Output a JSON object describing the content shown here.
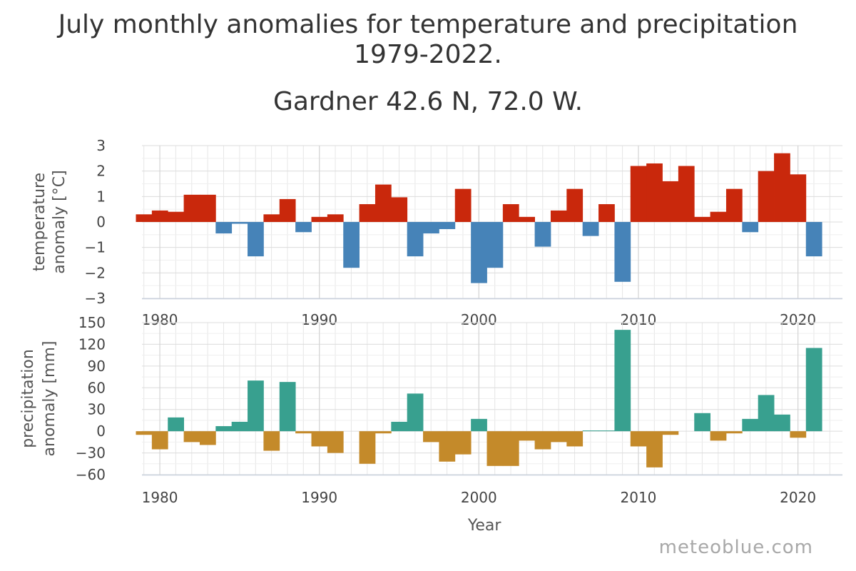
{
  "title_line1": "July monthly anomalies for temperature and precipitation",
  "title_line2": "1979-2022.",
  "subtitle": "Gardner 42.6 N, 72.0 W.",
  "watermark": "meteoblue.com",
  "colors": {
    "temp_positive": "#c9280c",
    "temp_negative": "#4683b8",
    "precip_positive": "#38a08f",
    "precip_negative": "#c48a2a",
    "grid": "#e6e6e6",
    "axis": "#c8d0dc"
  },
  "chart_data": [
    {
      "type": "bar",
      "name": "temperature",
      "ylabel": "temperature anomaly [°C]",
      "ylabel_lines": [
        "temperature",
        "anomaly [°C]"
      ],
      "ylim": [
        -3,
        3
      ],
      "yticks": [
        3,
        2,
        1,
        0,
        -1,
        -2,
        -3
      ],
      "xticks": [
        1980,
        1990,
        2000,
        2010,
        2020
      ],
      "grid": true,
      "x": [
        1979,
        1980,
        1981,
        1982,
        1983,
        1984,
        1985,
        1986,
        1987,
        1988,
        1989,
        1990,
        1991,
        1992,
        1993,
        1994,
        1995,
        1996,
        1997,
        1998,
        1999,
        2000,
        2001,
        2002,
        2003,
        2004,
        2005,
        2006,
        2007,
        2008,
        2009,
        2010,
        2011,
        2012,
        2013,
        2014,
        2015,
        2016,
        2017,
        2018,
        2019,
        2020,
        2021
      ],
      "values": [
        0.3,
        0.45,
        0.4,
        1.07,
        1.07,
        -0.45,
        -0.07,
        -1.35,
        0.3,
        0.9,
        -0.4,
        0.2,
        0.3,
        -1.8,
        0.7,
        1.47,
        0.97,
        -1.35,
        -0.45,
        -0.28,
        1.3,
        -2.4,
        -1.8,
        0.7,
        0.2,
        -0.97,
        0.45,
        1.3,
        -0.55,
        0.7,
        -2.35,
        2.2,
        2.3,
        1.6,
        2.2,
        0.2,
        0.4,
        1.3,
        -0.4,
        2.0,
        2.7,
        1.87,
        -1.35
      ]
    },
    {
      "type": "bar",
      "name": "precipitation",
      "ylabel": "precipitation anomaly [mm]",
      "ylabel_lines": [
        "precipitation",
        "anomaly [mm]"
      ],
      "xlabel": "Year",
      "ylim": [
        -60,
        150
      ],
      "yticks": [
        150,
        120,
        90,
        60,
        30,
        0,
        -30,
        -60
      ],
      "xticks": [
        1980,
        1990,
        2000,
        2010,
        2020
      ],
      "grid": true,
      "x": [
        1979,
        1980,
        1981,
        1982,
        1983,
        1984,
        1985,
        1986,
        1987,
        1988,
        1989,
        1990,
        1991,
        1992,
        1993,
        1994,
        1995,
        1996,
        1997,
        1998,
        1999,
        2000,
        2001,
        2002,
        2003,
        2004,
        2005,
        2006,
        2007,
        2008,
        2009,
        2010,
        2011,
        2012,
        2013,
        2014,
        2015,
        2016,
        2017,
        2018,
        2019,
        2020,
        2021
      ],
      "values": [
        -5,
        -25,
        19,
        -15,
        -19,
        7,
        13,
        70,
        -27,
        68,
        -3,
        -21,
        -30,
        0,
        -45,
        -3,
        13,
        52,
        -15,
        -42,
        -32,
        17,
        -48,
        -48,
        -13,
        -25,
        -15,
        -21,
        1,
        1,
        140,
        -21,
        -50,
        -5,
        0,
        25,
        -13,
        -3,
        17,
        50,
        23,
        -9,
        115
      ]
    }
  ]
}
